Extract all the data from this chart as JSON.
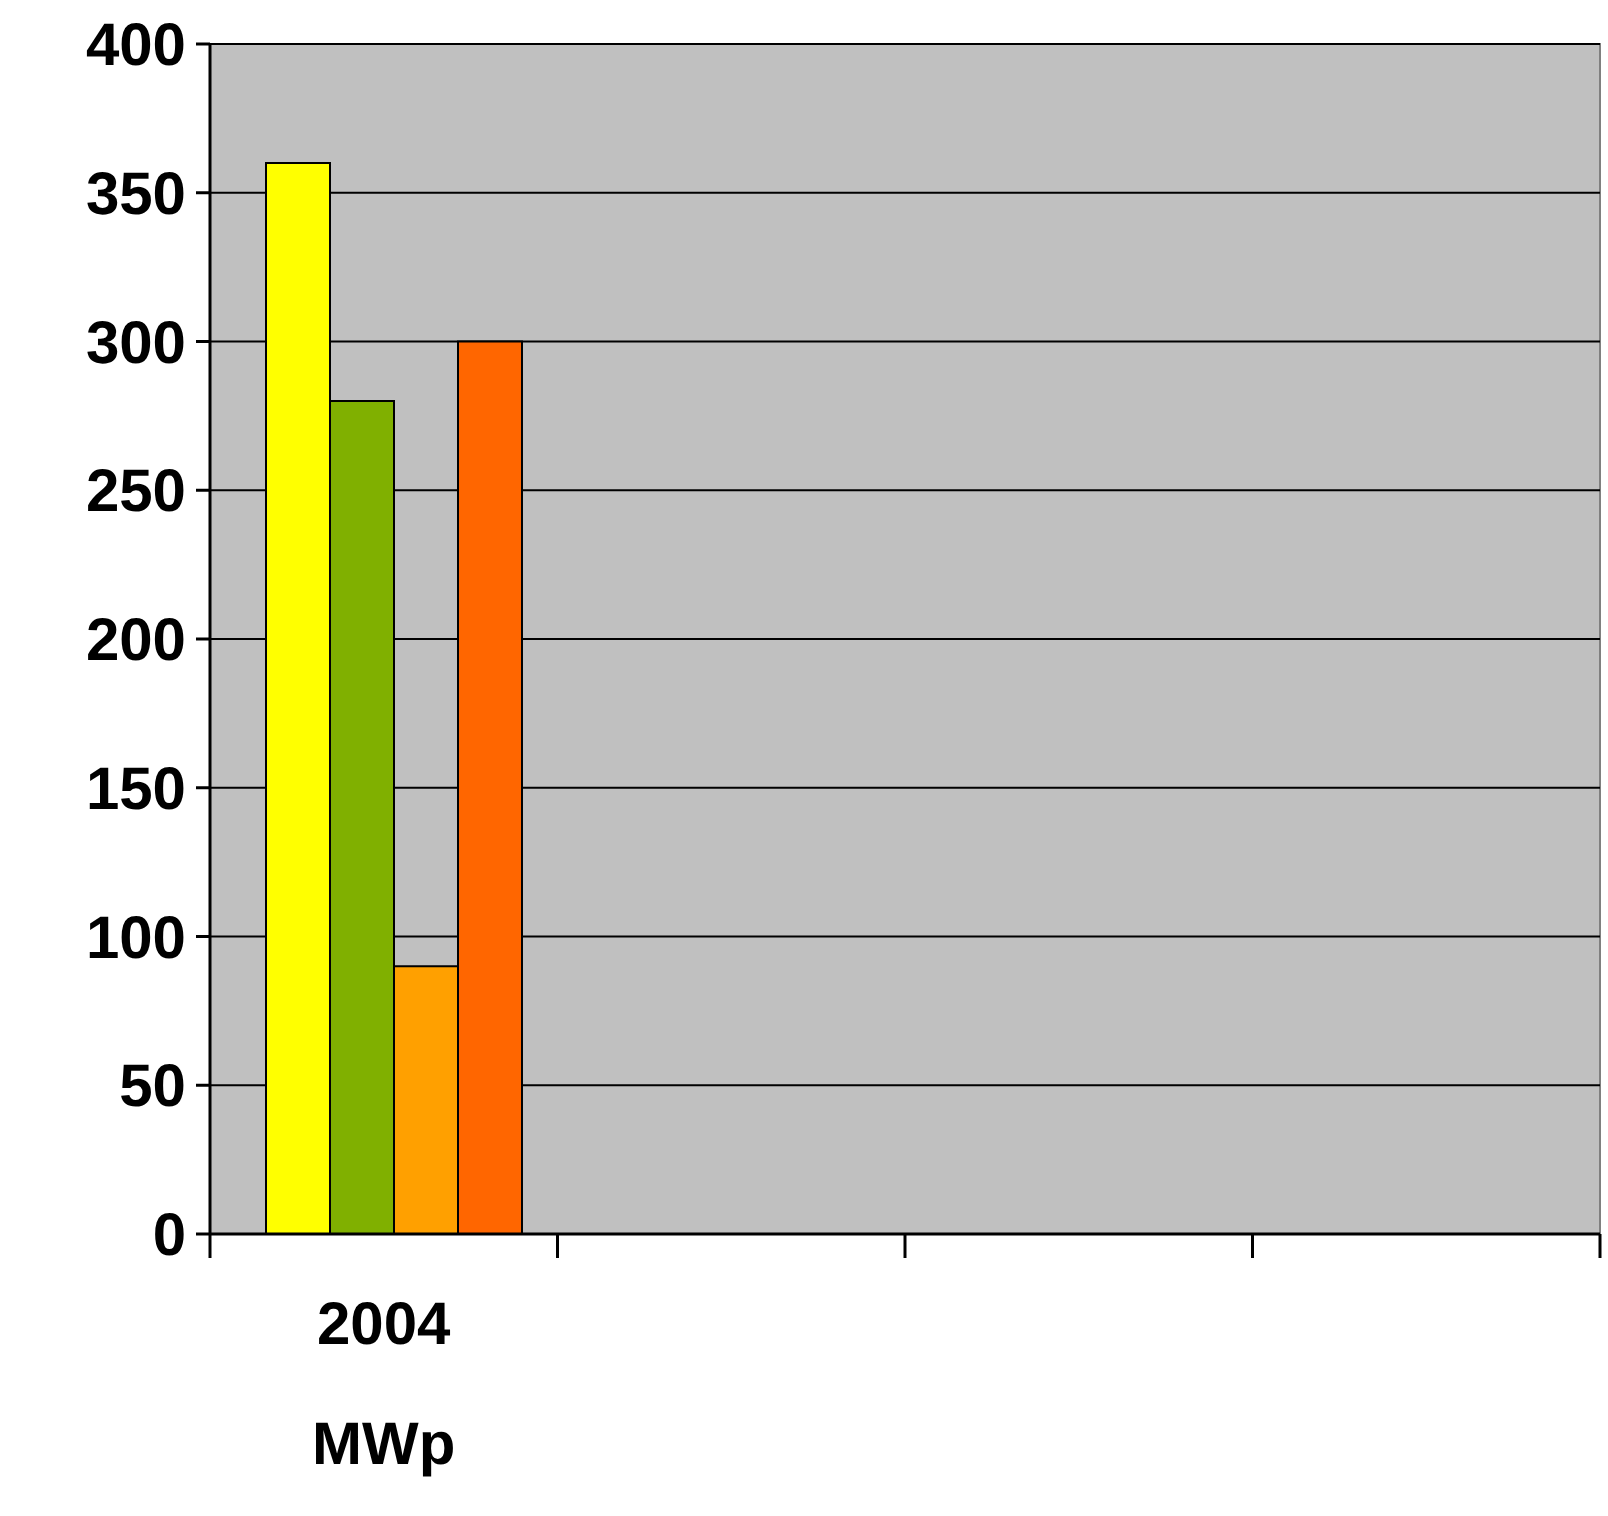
{
  "chart_data": {
    "type": "bar",
    "categories": [
      "2004 MWp",
      null,
      null,
      null
    ],
    "series": [
      {
        "color": "#ffff00",
        "values": [
          360,
          null,
          null,
          null
        ]
      },
      {
        "color": "#80b000",
        "values": [
          280,
          null,
          null,
          null
        ]
      },
      {
        "color": "#ffa000",
        "values": [
          90,
          null,
          null,
          null
        ]
      },
      {
        "color": "#ff6600",
        "values": [
          300,
          null,
          null,
          null
        ]
      }
    ],
    "ylim": [
      0,
      400
    ],
    "yticks": [
      0,
      50,
      100,
      150,
      200,
      250,
      300,
      350,
      400
    ],
    "grid": "y"
  }
}
